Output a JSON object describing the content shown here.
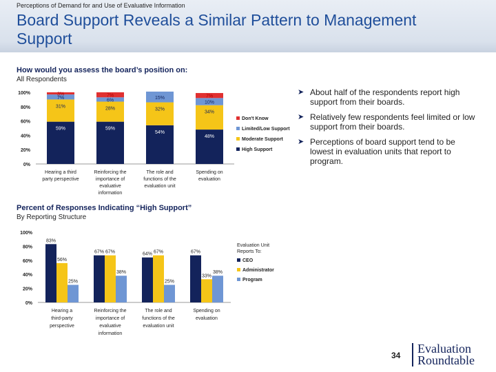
{
  "header": {
    "kicker": "Perceptions of Demand for and Use of Evaluative Information",
    "title": "Board Support Reveals a Similar Pattern to Management Support"
  },
  "section1": {
    "title": "How would you assess the board’s position on:",
    "subtitle": "All Respondents"
  },
  "section2": {
    "title": "Percent of Responses Indicating “High Support”",
    "subtitle": "By Reporting Structure"
  },
  "bullets": [
    "About half of the respondents report high support from their boards.",
    "Relatively few respondents feel limited or low support from their boards.",
    "Perceptions of board support tend to be lowest in evaluation units that report to program."
  ],
  "chart_data": [
    {
      "type": "bar",
      "stacked": true,
      "categories": [
        "Hearing a third party perspective",
        "Reinforcing the importance of evaluative information",
        "The role and functions of the evaluation unit",
        "Spending on evaluation"
      ],
      "ylim": [
        0,
        100
      ],
      "yticks": [
        "0%",
        "20%",
        "40%",
        "60%",
        "80%",
        "100%"
      ],
      "legend_position": "right",
      "series": [
        {
          "name": "High Support",
          "color": "#13235b",
          "values": [
            59,
            59,
            54,
            48
          ],
          "labels": [
            "59%",
            "59%",
            "54%",
            "48%"
          ]
        },
        {
          "name": "Moderate Support",
          "color": "#f5c518",
          "values": [
            31,
            28,
            32,
            34
          ],
          "labels": [
            "31%",
            "28%",
            "32%",
            "34%"
          ]
        },
        {
          "name": "Limited/Low Support",
          "color": "#6f96d4",
          "values": [
            7,
            6,
            15,
            10
          ],
          "labels": [
            "7%",
            "6%",
            "15%",
            "10%"
          ]
        },
        {
          "name": "Don't Know",
          "color": "#e03030",
          "values": [
            3,
            7,
            0,
            7
          ],
          "labels": [
            "3%",
            "7%",
            "",
            "7%"
          ]
        }
      ]
    },
    {
      "type": "bar",
      "categories": [
        "Hearing a third-party perspective",
        "Reinforcing the importance of evaluative information",
        "The role and functions of the evaluation unit",
        "Spending on evaluation"
      ],
      "ylim": [
        0,
        100
      ],
      "yticks": [
        "0%",
        "20%",
        "40%",
        "60%",
        "80%",
        "100%"
      ],
      "legend_title": "Evaluation Unit Reports To:",
      "legend_position": "right",
      "series": [
        {
          "name": "CEO",
          "color": "#13235b",
          "values": [
            83,
            67,
            64,
            67
          ],
          "labels": [
            "83%",
            "67%",
            "64%",
            "67%"
          ]
        },
        {
          "name": "Administrator",
          "color": "#f5c518",
          "values": [
            56,
            67,
            67,
            33
          ],
          "labels": [
            "56%",
            "67%",
            "67%",
            "33%"
          ]
        },
        {
          "name": "Program",
          "color": "#6f96d4",
          "values": [
            25,
            38,
            25,
            38
          ],
          "labels": [
            "25%",
            "38%",
            "25%",
            "38%"
          ]
        }
      ]
    }
  ],
  "footer": {
    "page_number": "34",
    "logo_line1": "Evaluation",
    "logo_line2": "Roundtable"
  }
}
